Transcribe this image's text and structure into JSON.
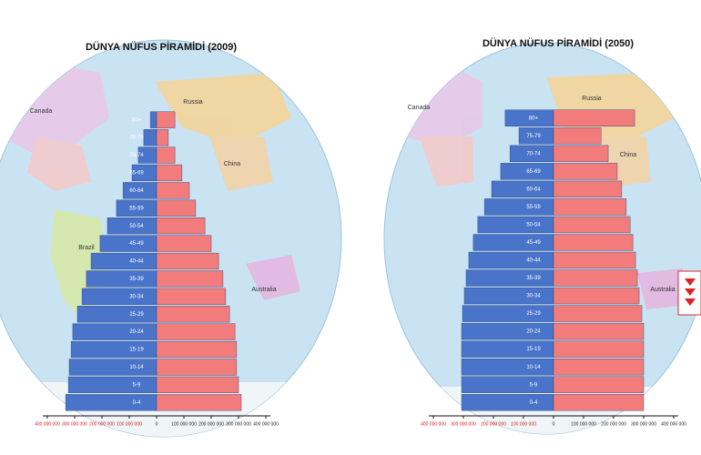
{
  "chart_data": [
    {
      "type": "pyramid",
      "title": "DÜNYA NÜFUS PİRAMİDİ (2009)",
      "categories": [
        "0-4",
        "5-9",
        "10-14",
        "15-19",
        "20-24",
        "25-29",
        "30-34",
        "35-39",
        "40-44",
        "45-49",
        "50-54",
        "55-59",
        "60-64",
        "65-69",
        "70-74",
        "75-79",
        "80+"
      ],
      "series": [
        {
          "color": "#4a74c9",
          "values": [
            -333000000,
            -323000000,
            -320000000,
            -313000000,
            -307000000,
            -290000000,
            -273000000,
            -257000000,
            -240000000,
            -207000000,
            -180000000,
            -147000000,
            -123000000,
            -90000000,
            -67000000,
            -47000000,
            -23000000
          ]
        },
        {
          "color": "#f27b7b",
          "values": [
            310000000,
            300000000,
            293000000,
            293000000,
            287000000,
            267000000,
            253000000,
            243000000,
            227000000,
            200000000,
            177000000,
            143000000,
            120000000,
            93000000,
            67000000,
            43000000,
            67000000
          ]
        }
      ],
      "xlim": [
        -400000000,
        400000000
      ],
      "xticks": [
        {
          "value": -400000000,
          "label": "400 000 000"
        },
        {
          "value": -300000000,
          "label": "300 000 000"
        },
        {
          "value": -200000000,
          "label": "200 000 000"
        },
        {
          "value": -100000000,
          "label": "100 000 000"
        },
        0,
        {
          "value": 100000000,
          "label": "100 000 000"
        },
        {
          "value": 200000000,
          "label": "200 000 000"
        },
        {
          "value": 300000000,
          "label": "300 000 000"
        },
        {
          "value": 400000000,
          "label": "400 000 000"
        }
      ],
      "map_labels": [
        "Canada",
        "Russia",
        "China",
        "Brazil",
        "Australia"
      ]
    },
    {
      "type": "pyramid",
      "title": "DÜNYA NÜFUS PİRAMİDİ (2050)",
      "categories": [
        "0-4",
        "5-9",
        "10-14",
        "15-19",
        "20-24",
        "25-29",
        "30-34",
        "35-39",
        "40-44",
        "45-49",
        "50-54",
        "55-59",
        "60-64",
        "65-69",
        "70-74",
        "75-79",
        "80+"
      ],
      "series": [
        {
          "color": "#4a74c9",
          "values": [
            -306000000,
            -306000000,
            -306000000,
            -306000000,
            -306000000,
            -303000000,
            -297000000,
            -291000000,
            -282000000,
            -267000000,
            -252000000,
            -230000000,
            -206000000,
            -176000000,
            -145000000,
            -115000000,
            -161000000
          ]
        },
        {
          "color": "#f27b7b",
          "values": [
            300000000,
            300000000,
            300000000,
            300000000,
            300000000,
            294000000,
            285000000,
            279000000,
            273000000,
            264000000,
            255000000,
            242000000,
            227000000,
            212000000,
            182000000,
            158000000,
            270000000
          ]
        }
      ],
      "xlim": [
        -400000000,
        400000000
      ],
      "xticks": [
        {
          "value": -400000000,
          "label": "400 000 000"
        },
        {
          "value": -300000000,
          "label": "300 000 000"
        },
        {
          "value": -200000000,
          "label": "200 000 000"
        },
        {
          "value": -100000000,
          "label": "100 000 000"
        },
        0,
        {
          "value": 100000000,
          "label": "100 000 000"
        },
        {
          "value": 200000000,
          "label": "200 000 000"
        },
        {
          "value": 300000000,
          "label": "300 000 000"
        },
        {
          "value": 400000000,
          "label": "400 000 000"
        }
      ],
      "map_labels": [
        "Canada",
        "Russia",
        "China",
        "Australia"
      ]
    }
  ]
}
